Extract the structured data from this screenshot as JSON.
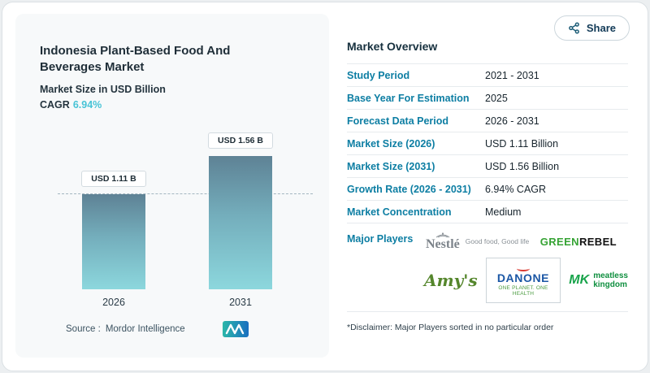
{
  "share": {
    "label": "Share"
  },
  "chart": {
    "title": "Indonesia Plant-Based Food And Beverages Market",
    "subtitle": "Market Size in USD Billion",
    "cagr_label": "CAGR",
    "cagr_value": "6.94%",
    "source_label": "Source :",
    "source_name": "Mordor Intelligence"
  },
  "chart_data": {
    "type": "bar",
    "title": "Indonesia Plant-Based Food And Beverages Market",
    "ylabel": "Market Size in USD Billion",
    "categories": [
      "2026",
      "2031"
    ],
    "values": [
      1.11,
      1.56
    ],
    "value_labels": [
      "USD 1.11 B",
      "USD 1.56 B"
    ],
    "ylim": [
      0,
      1.9
    ],
    "grid": false,
    "dashed_reference_line_at": 1.11,
    "bar_gradient": [
      "#5e8295",
      "#8cd7dd"
    ]
  },
  "overview": {
    "heading": "Market Overview",
    "rows": [
      {
        "label": "Study Period",
        "value": "2021 - 2031"
      },
      {
        "label": "Base Year For Estimation",
        "value": "2025"
      },
      {
        "label": "Forecast Data Period",
        "value": "2026 - 2031"
      },
      {
        "label": "Market Size (2026)",
        "value": "USD 1.11 Billion"
      },
      {
        "label": "Market Size (2031)",
        "value": "USD 1.56 Billion"
      },
      {
        "label": "Growth Rate (2026 - 2031)",
        "value": "6.94% CAGR"
      },
      {
        "label": "Market Concentration",
        "value": "Medium"
      }
    ],
    "major_players_label": "Major Players",
    "players": {
      "nestle": {
        "name": "Nestlé",
        "tagline": "Good food, Good life"
      },
      "greenrebel": {
        "green_part": "GREEN",
        "rest_part": "REBEL"
      },
      "amys": {
        "name": "Amy's"
      },
      "danone": {
        "name": "DANONE",
        "tagline": "ONE PLANET. ONE HEALTH"
      },
      "meatless_kingdom": {
        "mark": "MK",
        "line1": "meatless",
        "line2": "kingdom"
      }
    },
    "disclaimer": "*Disclaimer: Major Players sorted in no particular order"
  },
  "colors": {
    "accent_teal": "#0d7ea3",
    "cagr_teal": "#47c3d6",
    "panel_bg": "#f7f9fa",
    "bar_top": "#5e8295",
    "bar_bottom": "#8cd7dd"
  }
}
